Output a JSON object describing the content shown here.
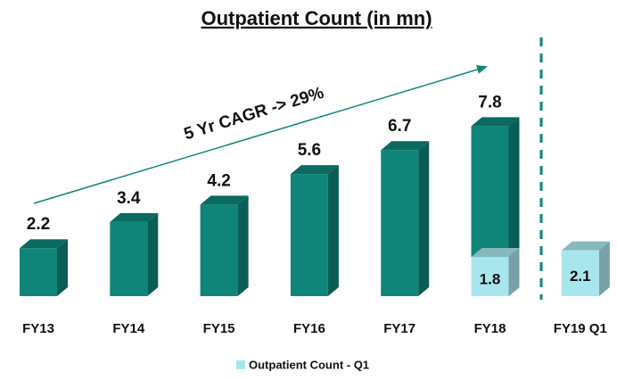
{
  "chart_data": {
    "type": "bar3d",
    "title": "Outpatient Count (in mn)",
    "annotation": "5 Yr CAGR -> 29%",
    "categories": [
      "FY13",
      "FY14",
      "FY15",
      "FY16",
      "FY17",
      "FY18",
      "FY19 Q1"
    ],
    "series": [
      {
        "color": "#0e8578",
        "values": [
          2.2,
          3.4,
          4.2,
          5.6,
          6.7,
          7.8,
          null
        ]
      },
      {
        "name": "Outpatient Count - Q1",
        "color": "#a8e6ee",
        "values": [
          null,
          null,
          null,
          null,
          null,
          1.8,
          2.1
        ]
      }
    ],
    "ylim": [
      0,
      9
    ],
    "legend": "bottom"
  }
}
